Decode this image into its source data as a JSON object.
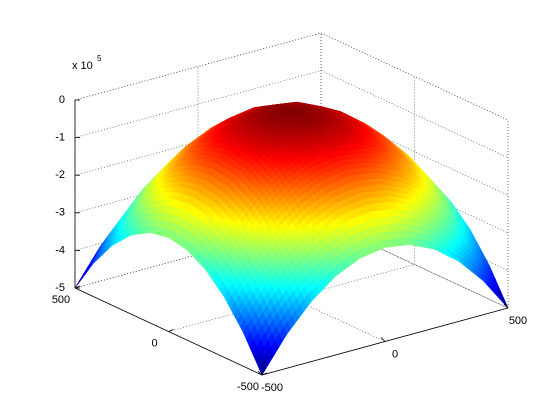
{
  "chart_data": {
    "type": "surface",
    "z_multiplier": {
      "base": "x 10",
      "exponent": "5"
    },
    "x": [
      -500,
      -400,
      -300,
      -200,
      -100,
      0,
      100,
      200,
      300,
      400,
      500
    ],
    "y": [
      -500,
      -400,
      -300,
      -200,
      -100,
      0,
      100,
      200,
      300,
      400,
      500
    ],
    "z": [
      [
        -5,
        -4.1,
        -3.4,
        -2.9,
        -2.6,
        -2.5,
        -2.6,
        -2.9,
        -3.4,
        -4.1,
        -5
      ],
      [
        -4.1,
        -3.2,
        -2.5,
        -2,
        -1.7,
        -1.6,
        -1.7,
        -2,
        -2.5,
        -3.2,
        -4.1
      ],
      [
        -3.4,
        -2.5,
        -1.8,
        -1.3,
        -1,
        -0.9,
        -1,
        -1.3,
        -1.8,
        -2.5,
        -3.4
      ],
      [
        -2.9,
        -2,
        -1.3,
        -0.8,
        -0.5,
        -0.4,
        -0.5,
        -0.8,
        -1.3,
        -2,
        -2.9
      ],
      [
        -2.6,
        -1.7,
        -1,
        -0.5,
        -0.2,
        -0.1,
        -0.2,
        -0.5,
        -1,
        -1.7,
        -2.6
      ],
      [
        -2.5,
        -1.6,
        -0.9,
        -0.4,
        -0.1,
        0,
        -0.1,
        -0.4,
        -0.9,
        -1.6,
        -2.5
      ],
      [
        -2.6,
        -1.7,
        -1,
        -0.5,
        -0.2,
        -0.1,
        -0.2,
        -0.5,
        -1,
        -1.7,
        -2.6
      ],
      [
        -2.9,
        -2,
        -1.3,
        -0.8,
        -0.5,
        -0.4,
        -0.5,
        -0.8,
        -1.3,
        -2,
        -2.9
      ],
      [
        -3.4,
        -2.5,
        -1.8,
        -1.3,
        -1,
        -0.9,
        -1,
        -1.3,
        -1.8,
        -2.5,
        -3.4
      ],
      [
        -4.1,
        -3.2,
        -2.5,
        -2,
        -1.7,
        -1.6,
        -1.7,
        -2,
        -2.5,
        -3.2,
        -4.1
      ],
      [
        -5,
        -4.1,
        -3.4,
        -2.9,
        -2.6,
        -2.5,
        -2.6,
        -2.9,
        -3.4,
        -4.1,
        -5
      ]
    ],
    "xlim": [
      -500,
      500
    ],
    "ylim": [
      -500,
      500
    ],
    "zlim": [
      -5,
      0
    ],
    "xticks": [
      -500,
      0,
      500
    ],
    "yticks": [
      -500,
      0,
      500
    ],
    "zticks": [
      -5,
      -4,
      -3,
      -2,
      -1,
      0
    ],
    "colormap": "jet",
    "grid": true
  }
}
